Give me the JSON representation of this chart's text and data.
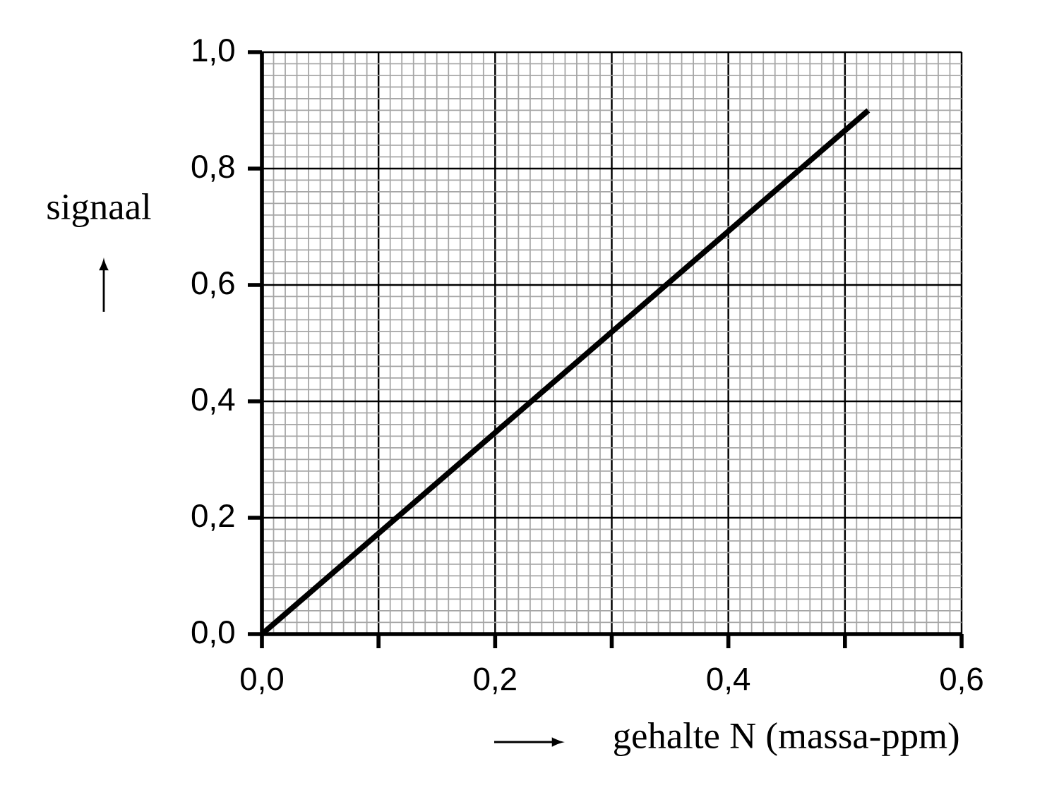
{
  "chart_data": {
    "type": "line",
    "xlabel": "gehalte N (massa-ppm)",
    "ylabel": "signaal",
    "x": [
      0,
      0.52
    ],
    "series": [
      {
        "color": "#000000",
        "values": [
          0,
          0.9
        ]
      }
    ],
    "xlim": [
      0,
      0.6
    ],
    "ylim": [
      0,
      1.0
    ],
    "xticks": [
      {
        "value": 0,
        "label": "0,0"
      },
      {
        "value": 0.1,
        "label": null
      },
      {
        "value": 0.2,
        "label": "0,2"
      },
      {
        "value": 0.3,
        "label": null
      },
      {
        "value": 0.4,
        "label": "0,4"
      },
      {
        "value": 0.5,
        "label": null
      },
      {
        "value": 0.6,
        "label": "0,6"
      }
    ],
    "yticks": [
      {
        "value": 0,
        "label": "0,0"
      },
      {
        "value": 0.2,
        "label": "0,2"
      },
      {
        "value": 0.4,
        "label": "0,4"
      },
      {
        "value": 0.6,
        "label": "0,6"
      },
      {
        "value": 0.8,
        "label": "0,8"
      },
      {
        "value": 1.0,
        "label": "1,0"
      }
    ],
    "grid": true,
    "marker": "none",
    "line_style": "solid"
  }
}
